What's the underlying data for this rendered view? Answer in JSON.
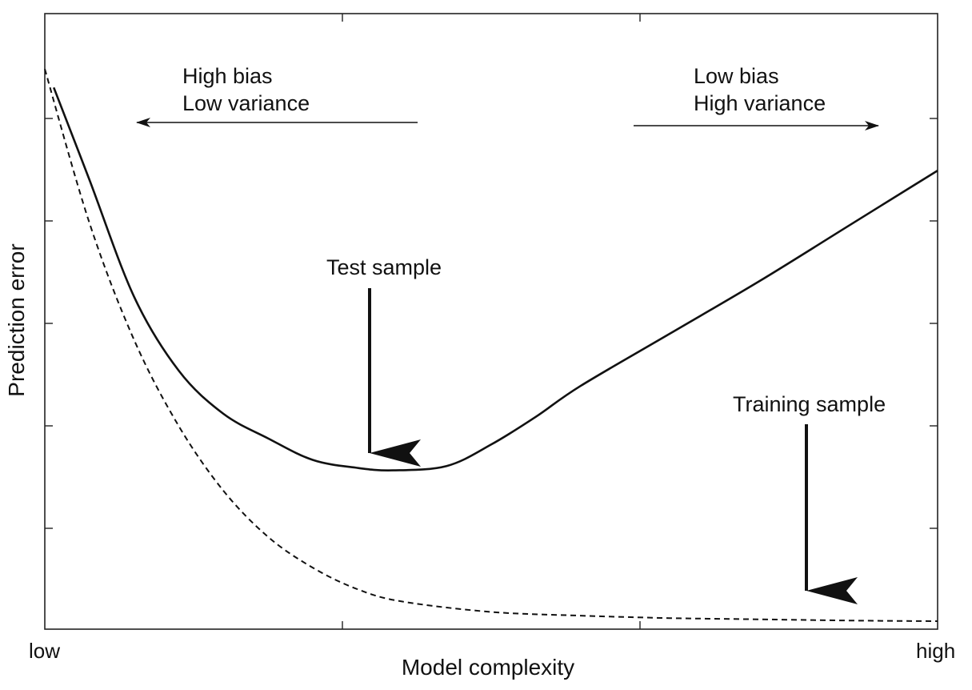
{
  "chart_data": {
    "type": "line",
    "xlabel": "Model complexity",
    "ylabel": "Prediction error",
    "x_tick_labels": {
      "low": "low",
      "high": "high"
    },
    "x_range": [
      0,
      1
    ],
    "y_range": [
      0,
      1
    ],
    "series": [
      {
        "name": "Test sample",
        "style": "solid",
        "x": [
          0.01,
          0.05,
          0.1,
          0.15,
          0.2,
          0.25,
          0.3,
          0.35,
          0.39,
          0.45,
          0.5,
          0.55,
          0.6,
          0.7,
          0.8,
          0.9,
          1.0
        ],
        "y": [
          0.88,
          0.73,
          0.54,
          0.42,
          0.35,
          0.31,
          0.275,
          0.262,
          0.258,
          0.265,
          0.3,
          0.345,
          0.395,
          0.48,
          0.565,
          0.655,
          0.745
        ]
      },
      {
        "name": "Training sample",
        "style": "dashed",
        "x": [
          0.0,
          0.05,
          0.1,
          0.15,
          0.2,
          0.25,
          0.3,
          0.35,
          0.4,
          0.5,
          0.6,
          0.7,
          0.8,
          0.9,
          1.0
        ],
        "y": [
          0.91,
          0.66,
          0.47,
          0.33,
          0.225,
          0.15,
          0.1,
          0.065,
          0.045,
          0.028,
          0.022,
          0.018,
          0.016,
          0.014,
          0.013
        ]
      }
    ],
    "annotations": {
      "left": {
        "line1": "High bias",
        "line2": "Low variance",
        "arrow": "left"
      },
      "right": {
        "line1": "Low bias",
        "line2": "High variance",
        "arrow": "right"
      },
      "test": {
        "text": "Test sample",
        "arrow": "down"
      },
      "training": {
        "text": "Training sample",
        "arrow": "down"
      }
    },
    "grid": false,
    "ticks": "inward, unlabeled y"
  }
}
